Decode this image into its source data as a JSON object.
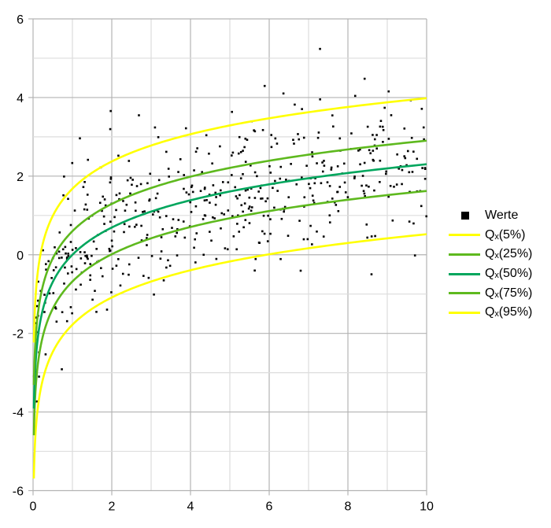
{
  "chart_data": {
    "type": "scatter",
    "title": "",
    "xlabel": "",
    "ylabel": "",
    "xlim": [
      0,
      10
    ],
    "ylim": [
      -6,
      6
    ],
    "x_ticks": [
      "0",
      "2",
      "4",
      "6",
      "8",
      "10"
    ],
    "y_ticks": [
      "-6",
      "-4",
      "-2",
      "0",
      "2",
      "4",
      "6"
    ],
    "grid": {
      "major": true,
      "minor": true,
      "major_step": 2,
      "minor_step": 1
    },
    "legend_position": "right",
    "series": [
      {
        "name": "Werte",
        "kind": "scatter",
        "marker": "square",
        "color": "#000000",
        "n_points": 500,
        "model": "y = ln(x) + noise",
        "seed": 7
      },
      {
        "name": "Qₓ(5%)",
        "kind": "line",
        "color": "#ffff00",
        "offset": -1.78,
        "x": [
          0.02,
          0.5,
          1,
          2,
          4,
          6,
          8,
          10
        ],
        "values": [
          -5.69,
          -2.47,
          -1.78,
          -1.09,
          -0.39,
          0.01,
          0.3,
          0.52
        ]
      },
      {
        "name": "Qₓ(25%)",
        "kind": "line",
        "color": "#5eb91e",
        "offset": -0.68,
        "x": [
          0.02,
          0.5,
          1,
          2,
          4,
          6,
          8,
          10
        ],
        "values": [
          -4.59,
          -1.37,
          -0.68,
          0.01,
          0.71,
          1.11,
          1.4,
          1.62
        ]
      },
      {
        "name": "Qₓ(50%)",
        "kind": "line",
        "color": "#00a65d",
        "offset": 0.0,
        "x": [
          0.02,
          0.5,
          1,
          2,
          4,
          6,
          8,
          10
        ],
        "values": [
          -3.91,
          -0.69,
          0.0,
          0.69,
          1.39,
          1.79,
          2.08,
          2.3
        ]
      },
      {
        "name": "Qₓ(75%)",
        "kind": "line",
        "color": "#5eb91e",
        "offset": 0.6,
        "x": [
          0.02,
          0.5,
          1,
          2,
          4,
          6,
          8,
          10
        ],
        "values": [
          -3.31,
          -0.09,
          0.6,
          1.29,
          1.99,
          2.39,
          2.68,
          2.9
        ]
      },
      {
        "name": "Qₓ(95%)",
        "kind": "line",
        "color": "#ffff00",
        "offset": 1.68,
        "x": [
          0.02,
          0.5,
          1,
          2,
          4,
          6,
          8,
          10
        ],
        "values": [
          -2.23,
          0.99,
          1.68,
          2.37,
          3.07,
          3.47,
          3.76,
          3.98
        ]
      }
    ]
  },
  "legend": {
    "items": [
      {
        "label": "Werte",
        "type": "marker",
        "color": "#000000"
      },
      {
        "label": "Qₓ(5%)",
        "type": "line",
        "color": "#ffff00"
      },
      {
        "label": "Qₓ(25%)",
        "type": "line",
        "color": "#5eb91e"
      },
      {
        "label": "Qₓ(50%)",
        "type": "line",
        "color": "#00a65d"
      },
      {
        "label": "Qₓ(75%)",
        "type": "line",
        "color": "#5eb91e"
      },
      {
        "label": "Qₓ(95%)",
        "type": "line",
        "color": "#ffff00"
      }
    ]
  },
  "colors": {
    "major_grid": "#b3b3b3",
    "minor_grid": "#dddddd"
  }
}
